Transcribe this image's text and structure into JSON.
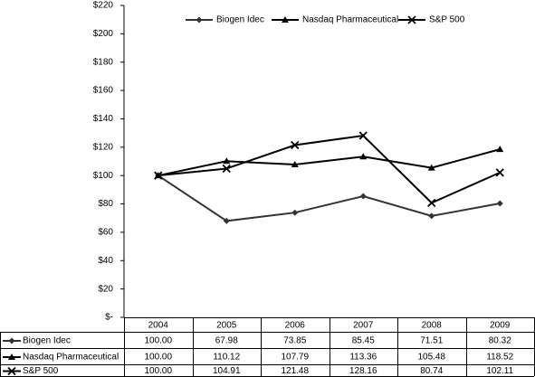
{
  "chart_data": {
    "type": "line",
    "categories": [
      "2004",
      "2005",
      "2006",
      "2007",
      "2008",
      "2009"
    ],
    "series": [
      {
        "name": "Biogen Idec",
        "color": "#333333",
        "marker": "diamond",
        "values": [
          100.0,
          67.98,
          73.85,
          85.45,
          71.51,
          80.32
        ],
        "value_labels": [
          "100.00",
          "67.98",
          "73.85",
          "85.45",
          "71.51",
          "80.32"
        ]
      },
      {
        "name": "Nasdaq Pharmaceutical",
        "color": "#000000",
        "marker": "triangle",
        "values": [
          100.0,
          110.12,
          107.79,
          113.36,
          105.48,
          118.52
        ],
        "value_labels": [
          "100.00",
          "110.12",
          "107.79",
          "113.36",
          "105.48",
          "118.52"
        ]
      },
      {
        "name": "S&P 500",
        "color": "#000000",
        "marker": "x",
        "values": [
          100.0,
          104.91,
          121.48,
          128.16,
          80.74,
          102.11
        ],
        "value_labels": [
          "100.00",
          "104.91",
          "121.48",
          "128.16",
          "80.74",
          "102.11"
        ]
      }
    ],
    "ylim": [
      0,
      220
    ],
    "yticks": [
      {
        "value": 0,
        "label": "$-"
      },
      {
        "value": 20,
        "label": "$20"
      },
      {
        "value": 40,
        "label": "$40"
      },
      {
        "value": 60,
        "label": "$60"
      },
      {
        "value": 80,
        "label": "$80"
      },
      {
        "value": 100,
        "label": "$100"
      },
      {
        "value": 120,
        "label": "$120"
      },
      {
        "value": 140,
        "label": "$140"
      },
      {
        "value": 160,
        "label": "$160"
      },
      {
        "value": 180,
        "label": "$180"
      },
      {
        "value": 200,
        "label": "$200"
      },
      {
        "value": 220,
        "label": "$220"
      }
    ],
    "grid": false,
    "legend": "top"
  }
}
